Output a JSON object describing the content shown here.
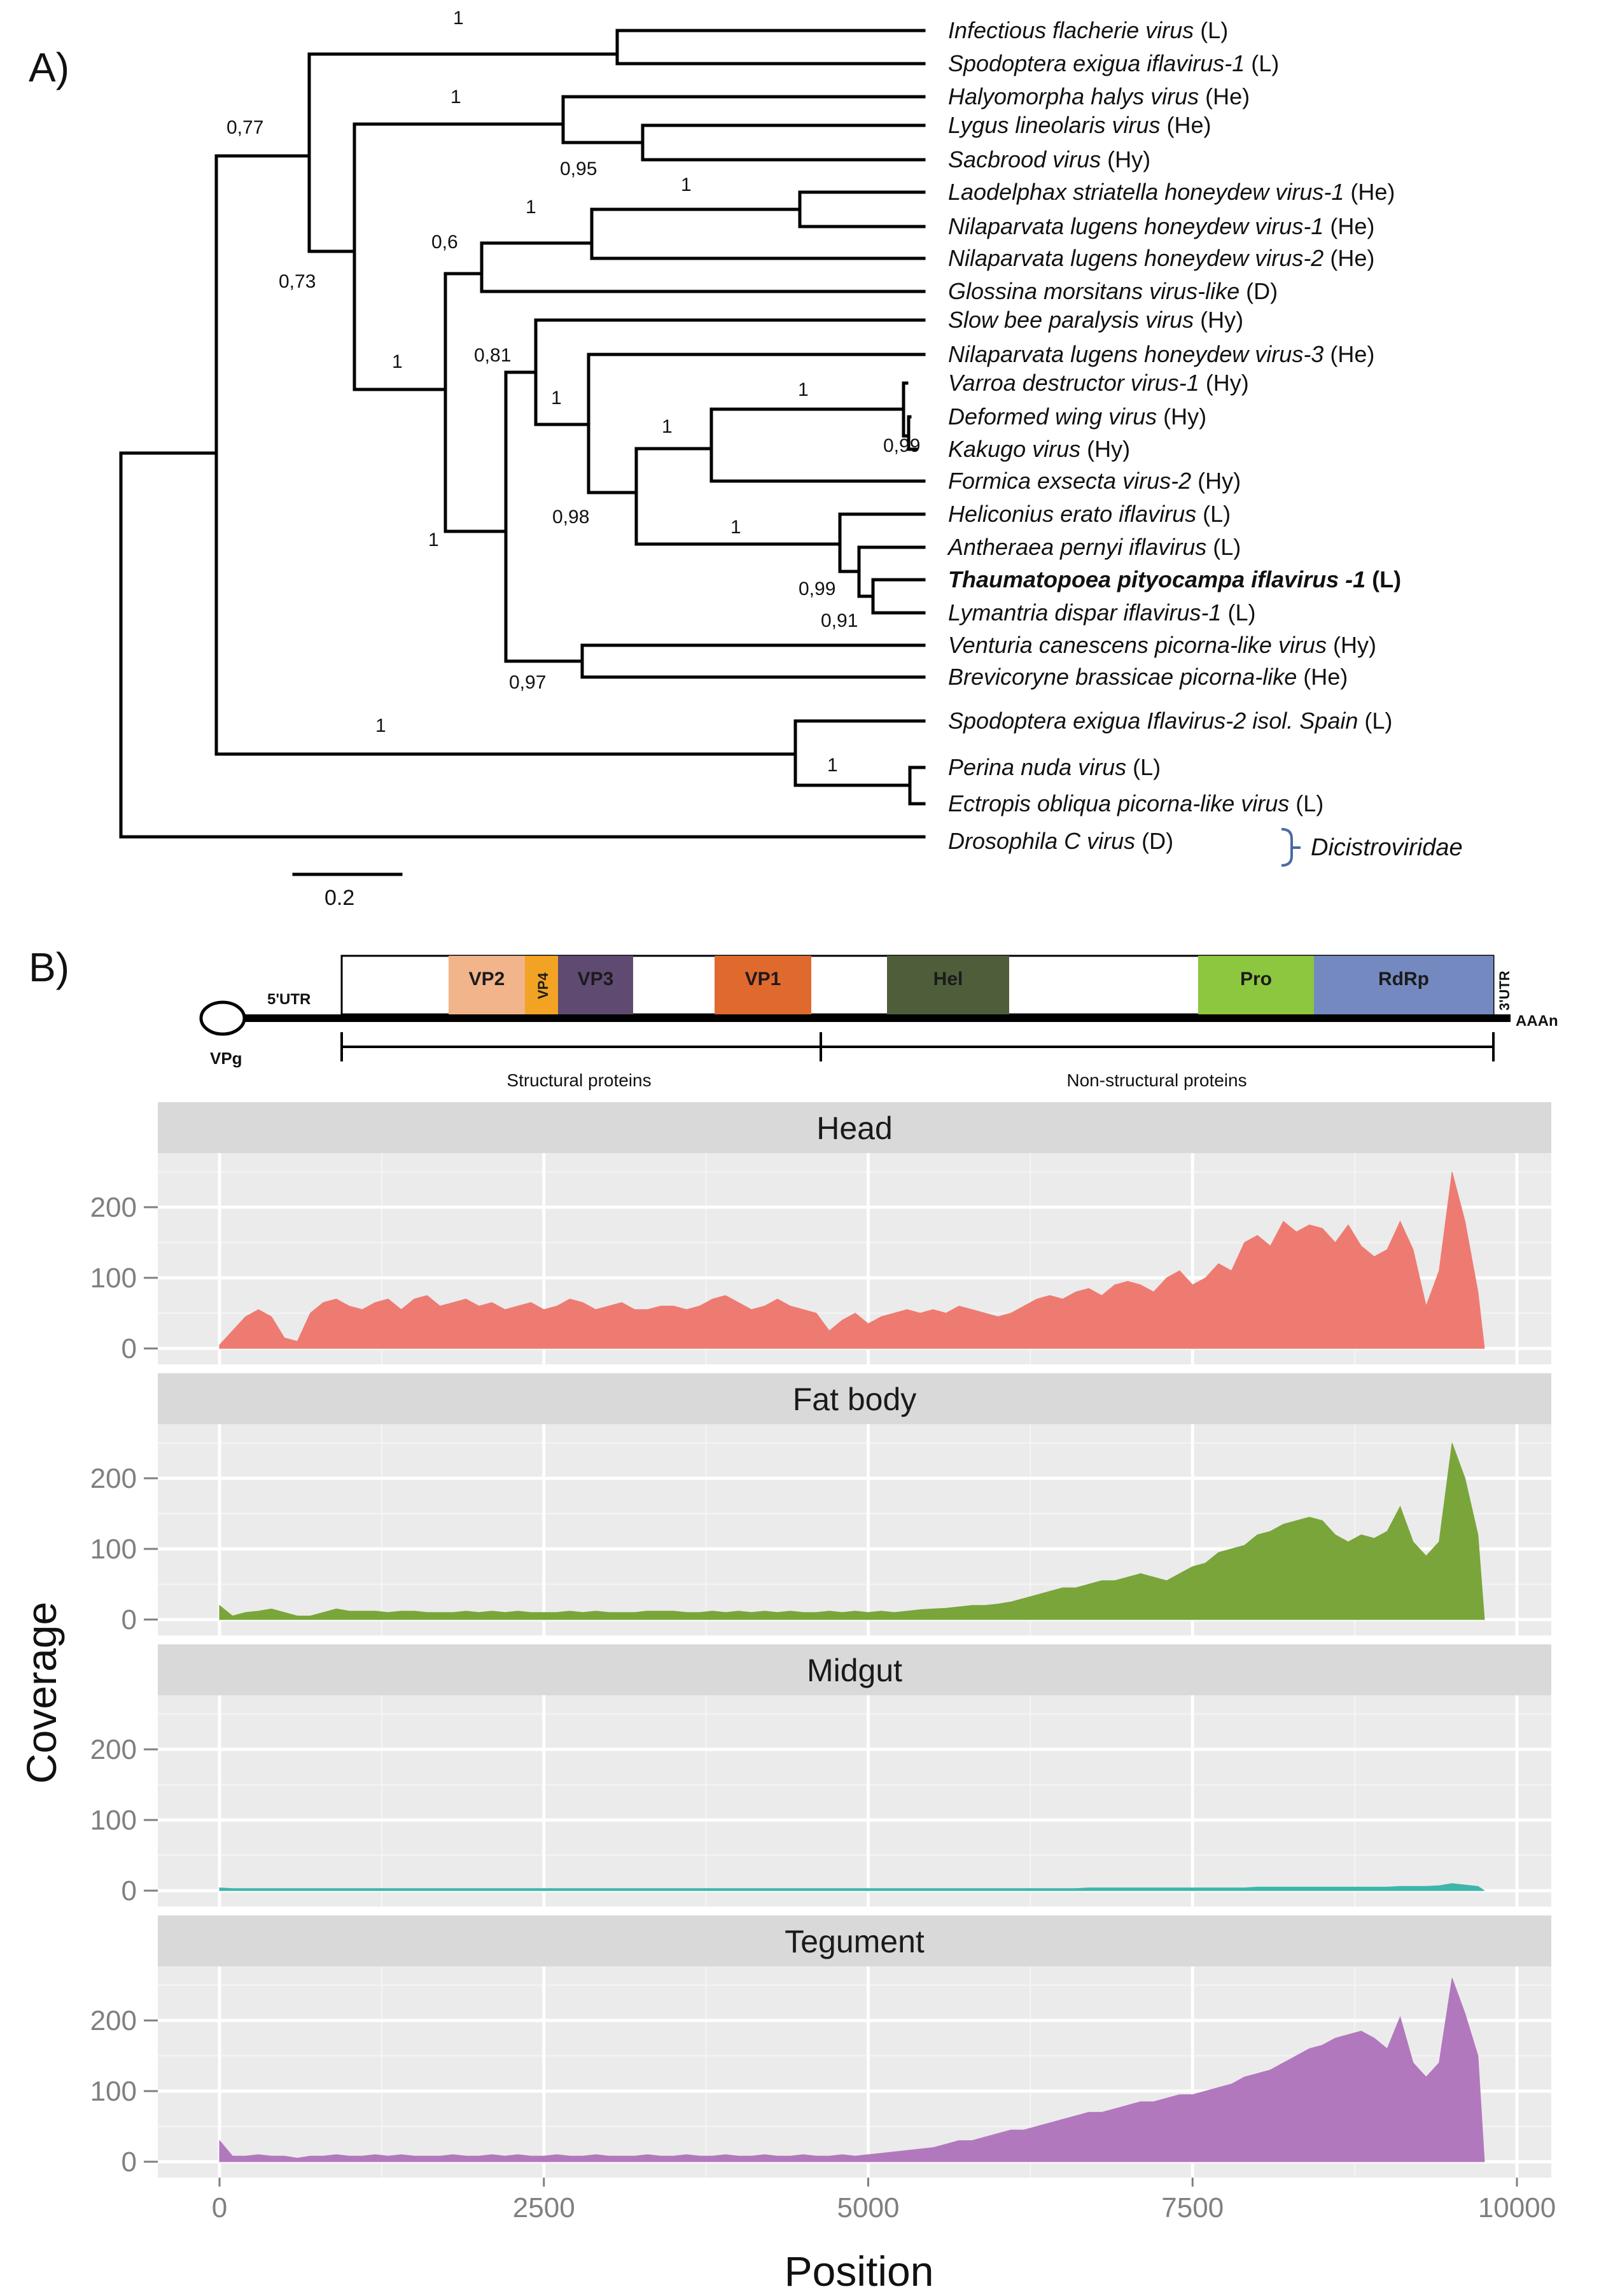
{
  "panelA": {
    "label": "A)",
    "scale_label": "0.2",
    "family_label": "Dicistroviridae",
    "leaves": [
      {
        "name": "Infectious flacherie virus",
        "tag": "(L)",
        "bold": false
      },
      {
        "name": "Spodoptera exigua iflavirus-1",
        "tag": "(L)",
        "bold": false
      },
      {
        "name": "Halyomorpha halys virus",
        "tag": "(He)",
        "bold": false
      },
      {
        "name": "Lygus lineolaris virus",
        "tag": "(He)",
        "bold": false
      },
      {
        "name": "Sacbrood virus",
        "tag": "(Hy)",
        "bold": false
      },
      {
        "name": "Laodelphax striatella honeydew virus-1",
        "tag": "(He)",
        "bold": false
      },
      {
        "name": "Nilaparvata lugens honeydew virus-1",
        "tag": "(He)",
        "bold": false
      },
      {
        "name": "Nilaparvata lugens honeydew virus-2",
        "tag": "(He)",
        "bold": false
      },
      {
        "name": "Glossina morsitans virus-like",
        "tag": "(D)",
        "bold": false
      },
      {
        "name": "Slow bee paralysis virus",
        "tag": "(Hy)",
        "bold": false
      },
      {
        "name": "Nilaparvata lugens honeydew virus-3",
        "tag": "(He)",
        "bold": false
      },
      {
        "name": "Varroa destructor virus-1",
        "tag": "(Hy)",
        "bold": false
      },
      {
        "name": "Deformed wing virus",
        "tag": "(Hy)",
        "bold": false
      },
      {
        "name": "Kakugo virus",
        "tag": "(Hy)",
        "bold": false
      },
      {
        "name": "Formica exsecta virus-2",
        "tag": "(Hy)",
        "bold": false
      },
      {
        "name": "Heliconius erato iflavirus",
        "tag": "(L)",
        "bold": false
      },
      {
        "name": "Antheraea pernyi iflavirus",
        "tag": "(L)",
        "bold": false
      },
      {
        "name": "Thaumatopoea pityocampa iflavirus -1",
        "tag": "(L)",
        "bold": true
      },
      {
        "name": "Lymantria dispar iflavirus-1",
        "tag": "(L)",
        "bold": false
      },
      {
        "name": "Venturia canescens picorna-like virus",
        "tag": "(Hy)",
        "bold": false
      },
      {
        "name": "Brevicoryne brassicae picorna-like",
        "tag": "(He)",
        "bold": false
      },
      {
        "name": "Spodoptera exigua Iflavirus-2 isol. Spain",
        "tag": "(L)",
        "bold": false
      },
      {
        "name": "Perina nuda virus",
        "tag": "(L)",
        "bold": false
      },
      {
        "name": "Ectropis obliqua picorna-like virus",
        "tag": "(L)",
        "bold": false
      },
      {
        "name": "Drosophila C virus",
        "tag": "(D)",
        "bold": false
      }
    ],
    "support_values": [
      "1",
      "0,77",
      "1",
      "0,95",
      "1",
      "0,73",
      "1",
      "0,6",
      "1",
      "0,81",
      "1",
      "1",
      "1",
      "0,99",
      "1",
      "0,98",
      "1",
      "0,99",
      "0,91",
      "0,97",
      "1",
      "1"
    ]
  },
  "panelB": {
    "label": "B)",
    "genome": {
      "utr5": "5'UTR",
      "utr3": "3'UTR",
      "vpg": "VPg",
      "polyA": "AAAn",
      "structural": "Structural proteins",
      "nonstructural": "Non-structural proteins",
      "segments": [
        {
          "name": "VP2",
          "color": "#f2b48a"
        },
        {
          "name": "VP4",
          "color": "#f2a324"
        },
        {
          "name": "VP3",
          "color": "#5f4a72"
        },
        {
          "name": "VP1",
          "color": "#e0692e"
        },
        {
          "name": "Hel",
          "color": "#4f5e3a"
        },
        {
          "name": "Pro",
          "color": "#8dc63f"
        },
        {
          "name": "RdRp",
          "color": "#7389c0"
        }
      ]
    }
  },
  "chart_data": {
    "type": "area",
    "xlabel": "Position",
    "ylabel": "Coverage",
    "xlim": [
      0,
      10000
    ],
    "ylim": [
      0,
      260
    ],
    "x_ticks": [
      "0",
      "2500",
      "5000",
      "7500",
      "10000"
    ],
    "y_ticks": [
      "0",
      "100",
      "200"
    ],
    "grid": true,
    "x": [
      0,
      100,
      200,
      300,
      400,
      500,
      600,
      700,
      800,
      900,
      1000,
      1100,
      1200,
      1300,
      1400,
      1500,
      1600,
      1700,
      1800,
      1900,
      2000,
      2100,
      2200,
      2300,
      2400,
      2500,
      2600,
      2700,
      2800,
      2900,
      3000,
      3100,
      3200,
      3300,
      3400,
      3500,
      3600,
      3700,
      3800,
      3900,
      4000,
      4100,
      4200,
      4300,
      4400,
      4500,
      4600,
      4700,
      4800,
      4900,
      5000,
      5100,
      5200,
      5300,
      5400,
      5500,
      5600,
      5700,
      5800,
      5900,
      6000,
      6100,
      6200,
      6300,
      6400,
      6500,
      6600,
      6700,
      6800,
      6900,
      7000,
      7100,
      7200,
      7300,
      7400,
      7500,
      7600,
      7700,
      7800,
      7900,
      8000,
      8100,
      8200,
      8300,
      8400,
      8500,
      8600,
      8700,
      8800,
      8900,
      9000,
      9100,
      9200,
      9300,
      9400,
      9500,
      9600,
      9700,
      9750
    ],
    "series": [
      {
        "name": "Head",
        "color": "#ee7b72",
        "values": [
          5,
          25,
          45,
          55,
          45,
          15,
          10,
          50,
          65,
          70,
          60,
          55,
          65,
          70,
          55,
          70,
          75,
          60,
          65,
          70,
          60,
          65,
          55,
          60,
          65,
          55,
          60,
          70,
          65,
          55,
          60,
          65,
          55,
          55,
          60,
          60,
          55,
          60,
          70,
          75,
          65,
          55,
          60,
          70,
          60,
          55,
          50,
          25,
          40,
          50,
          35,
          45,
          50,
          55,
          50,
          55,
          50,
          60,
          55,
          50,
          45,
          50,
          60,
          70,
          75,
          70,
          80,
          85,
          75,
          90,
          95,
          90,
          80,
          100,
          110,
          90,
          100,
          120,
          110,
          150,
          160,
          145,
          180,
          165,
          175,
          170,
          150,
          175,
          145,
          130,
          140,
          180,
          140,
          60,
          110,
          250,
          180,
          80,
          0
        ]
      },
      {
        "name": "Fat body",
        "color": "#7aa53b",
        "values": [
          20,
          5,
          10,
          12,
          15,
          10,
          5,
          5,
          10,
          15,
          12,
          12,
          12,
          10,
          12,
          12,
          10,
          10,
          10,
          12,
          10,
          12,
          10,
          12,
          10,
          10,
          10,
          12,
          10,
          12,
          10,
          10,
          10,
          12,
          12,
          12,
          10,
          10,
          12,
          10,
          12,
          10,
          12,
          10,
          12,
          10,
          10,
          12,
          10,
          12,
          10,
          12,
          10,
          12,
          14,
          15,
          16,
          18,
          20,
          20,
          22,
          25,
          30,
          35,
          40,
          45,
          45,
          50,
          55,
          55,
          60,
          65,
          60,
          55,
          65,
          75,
          80,
          95,
          100,
          105,
          120,
          125,
          135,
          140,
          145,
          140,
          120,
          110,
          120,
          115,
          125,
          160,
          110,
          90,
          110,
          250,
          200,
          120,
          0
        ]
      },
      {
        "name": "Midgut",
        "color": "#3fb5ab",
        "values": [
          4,
          3,
          3,
          3,
          3,
          3,
          3,
          3,
          3,
          3,
          3,
          3,
          3,
          3,
          3,
          3,
          3,
          3,
          3,
          3,
          3,
          3,
          3,
          3,
          3,
          3,
          3,
          3,
          3,
          3,
          3,
          3,
          3,
          3,
          3,
          3,
          3,
          3,
          3,
          3,
          3,
          3,
          3,
          3,
          3,
          3,
          3,
          3,
          3,
          3,
          3,
          3,
          3,
          3,
          3,
          3,
          3,
          3,
          3,
          3,
          3,
          3,
          3,
          3,
          3,
          3,
          3,
          4,
          4,
          4,
          4,
          4,
          4,
          4,
          4,
          4,
          4,
          4,
          4,
          4,
          5,
          5,
          5,
          5,
          5,
          5,
          5,
          5,
          5,
          5,
          5,
          6,
          6,
          6,
          7,
          10,
          8,
          6,
          0
        ]
      },
      {
        "name": "Tegument",
        "color": "#b278bd",
        "values": [
          30,
          8,
          8,
          10,
          8,
          8,
          5,
          8,
          8,
          10,
          8,
          8,
          10,
          8,
          10,
          8,
          8,
          8,
          10,
          8,
          8,
          10,
          8,
          10,
          8,
          8,
          10,
          8,
          8,
          10,
          8,
          8,
          8,
          10,
          8,
          8,
          10,
          8,
          8,
          10,
          8,
          8,
          10,
          8,
          8,
          10,
          8,
          8,
          10,
          8,
          10,
          12,
          14,
          16,
          18,
          20,
          25,
          30,
          30,
          35,
          40,
          45,
          45,
          50,
          55,
          60,
          65,
          70,
          70,
          75,
          80,
          85,
          85,
          90,
          95,
          95,
          100,
          105,
          110,
          120,
          125,
          130,
          140,
          150,
          160,
          165,
          175,
          180,
          185,
          175,
          160,
          205,
          140,
          120,
          140,
          260,
          210,
          150,
          0
        ]
      }
    ]
  }
}
